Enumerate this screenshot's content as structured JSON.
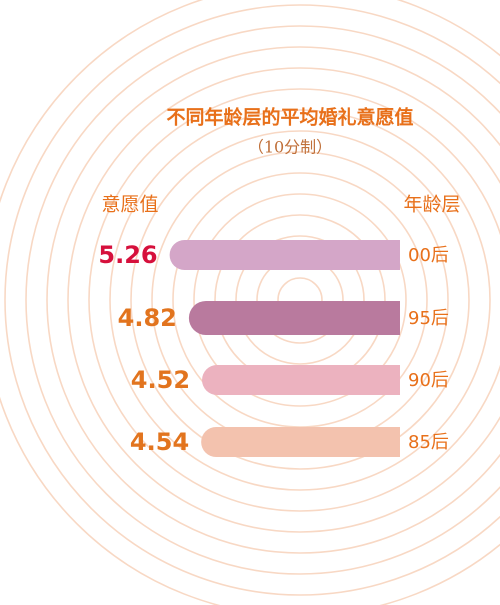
{
  "chart_data": {
    "type": "bar",
    "orientation": "horizontal",
    "title": "不同年龄层的平均婚礼意愿值",
    "subtitle": "（10分制）",
    "value_axis_label": "意愿值",
    "category_axis_label": "年龄层",
    "categories": [
      "00后",
      "95后",
      "90后",
      "85后"
    ],
    "values": [
      5.26,
      4.82,
      4.52,
      4.54
    ],
    "colors": [
      "#d4a6c8",
      "#b97a9e",
      "#ecb2bf",
      "#f3c2ae"
    ],
    "value_label_colors": [
      "#d6103c",
      "#e2741e",
      "#e2741e",
      "#e2741e"
    ]
  }
}
